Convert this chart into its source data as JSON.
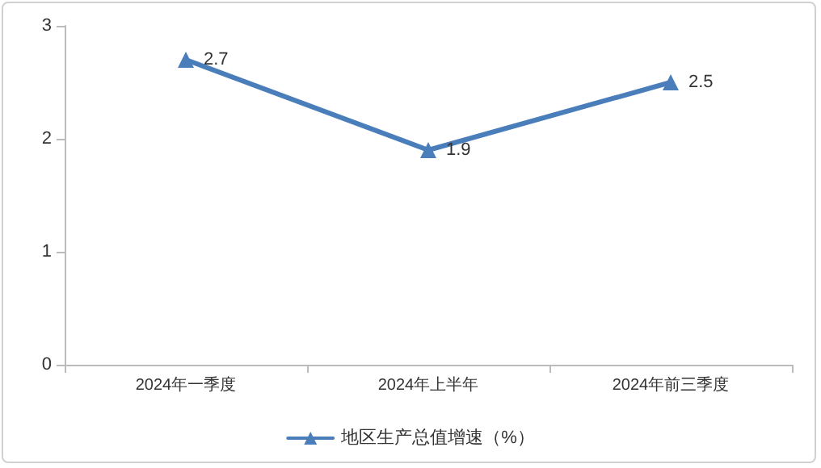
{
  "chart_data": {
    "type": "line",
    "categories": [
      "2024年一季度",
      "2024年上半年",
      "2024年前三季度"
    ],
    "series": [
      {
        "name": "地区生产总值增速（%）",
        "color": "#4a7ebb",
        "values": [
          2.7,
          1.9,
          2.5
        ]
      }
    ],
    "ylim": [
      0,
      3
    ],
    "yticks": [
      0,
      1,
      2,
      3
    ],
    "grid": false,
    "legend": "bottom",
    "marker": "triangle",
    "line_style": "solid",
    "data_labels": true
  }
}
